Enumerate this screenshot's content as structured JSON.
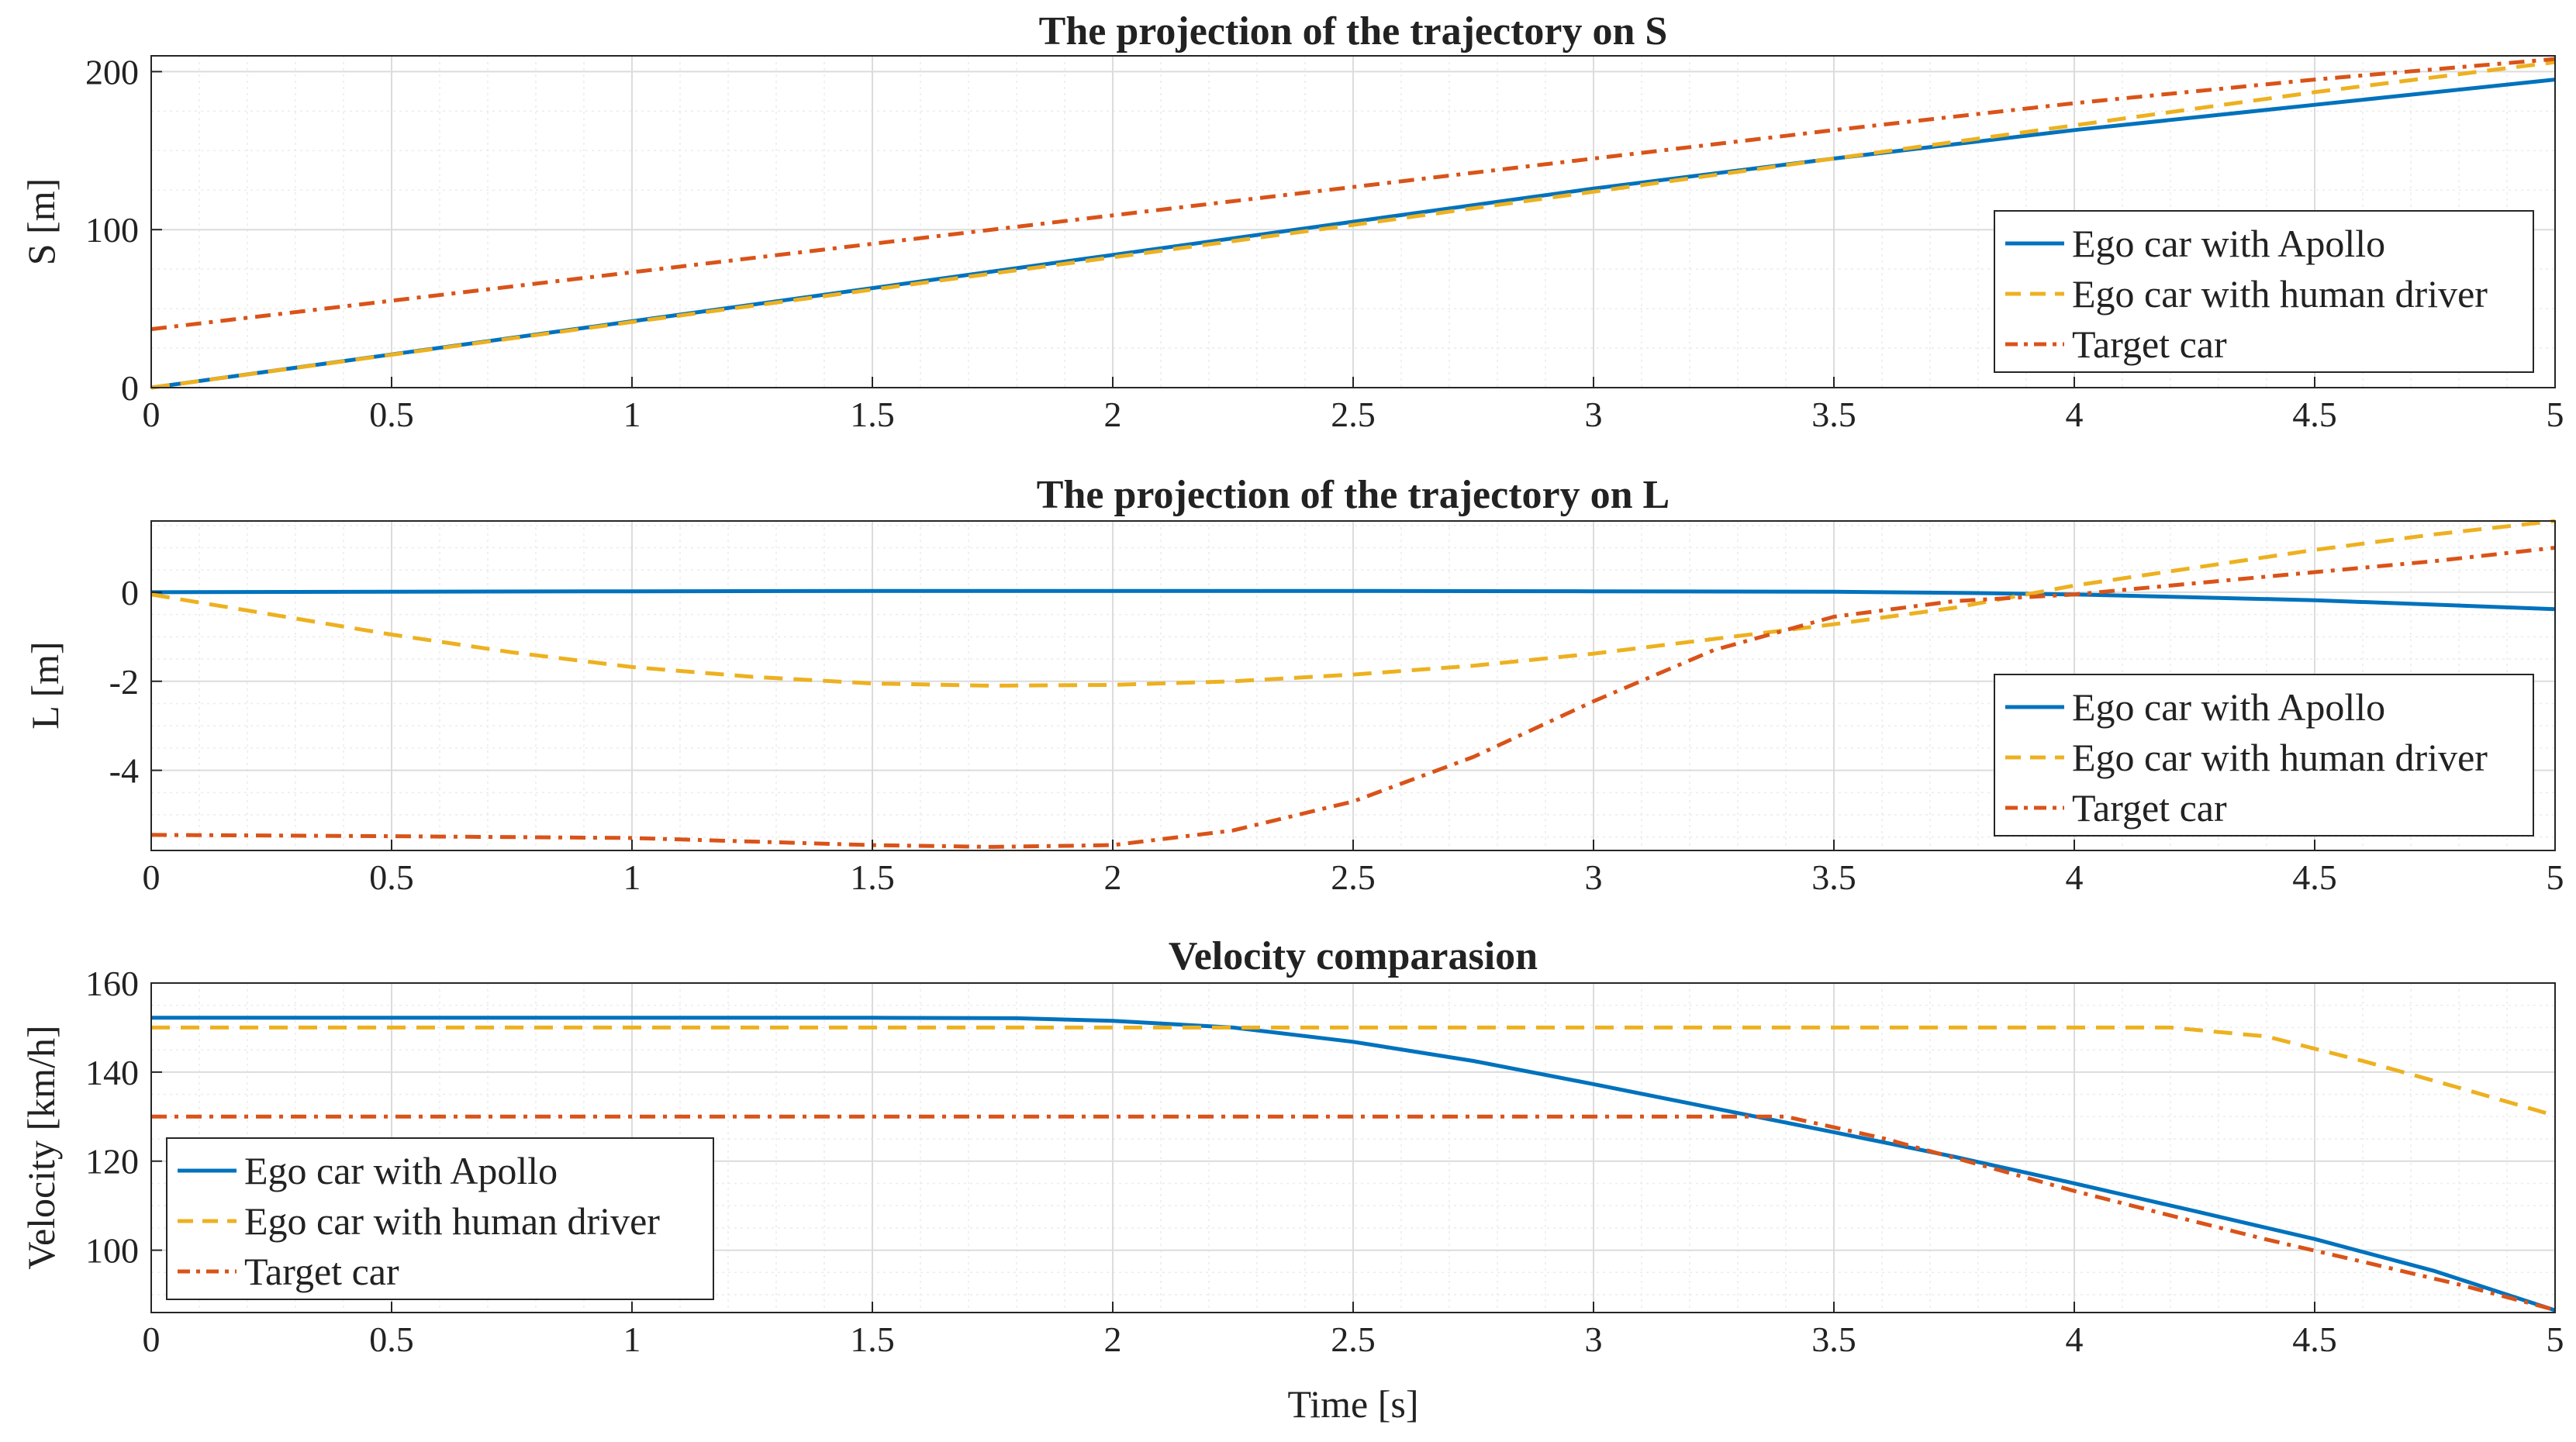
{
  "figure": {
    "shared_xlabel": "Time [s]",
    "colors": {
      "apollo": "#0072BD",
      "human": "#EDB120",
      "target": "#D95319"
    }
  },
  "chart_data": [
    {
      "type": "line",
      "title": "The projection of the trajectory on S",
      "xlabel": "",
      "ylabel": "S [m]",
      "xlim": [
        0,
        5
      ],
      "ylim": [
        0,
        210
      ],
      "xticks": [
        0,
        0.5,
        1,
        1.5,
        2,
        2.5,
        3,
        3.5,
        4,
        4.5,
        5
      ],
      "xtick_labels": [
        "0",
        "0.5",
        "1",
        "1.5",
        "2",
        "2.5",
        "3",
        "3.5",
        "4",
        "4.5",
        "5"
      ],
      "yticks": [
        0,
        100,
        200
      ],
      "ytick_labels": [
        "0",
        "100",
        "200"
      ],
      "grid": true,
      "legend_position": "bottom-right",
      "legend": [
        "Ego car with Apollo",
        "Ego car with human driver",
        "Target car"
      ],
      "series": [
        {
          "name": "Ego car with Apollo",
          "style": "solid",
          "color": "#0072BD",
          "x": [
            0,
            0.5,
            1,
            1.5,
            2,
            2.5,
            3,
            3.5,
            4,
            4.5,
            5
          ],
          "y": [
            0,
            21,
            42,
            63,
            84,
            105,
            126,
            145,
            163,
            179,
            195
          ]
        },
        {
          "name": "Ego car with human driver",
          "style": "dashed",
          "color": "#EDB120",
          "x": [
            0,
            0.5,
            1,
            1.5,
            2,
            2.5,
            3,
            3.5,
            4,
            4.5,
            5
          ],
          "y": [
            0,
            20.8,
            41.5,
            62,
            82.5,
            103,
            124,
            145,
            166,
            187,
            206
          ]
        },
        {
          "name": "Target car",
          "style": "dashdot",
          "color": "#D95319",
          "x": [
            0,
            0.5,
            1,
            1.5,
            2,
            2.5,
            3,
            3.5,
            4,
            4.5,
            5
          ],
          "y": [
            37,
            55,
            73,
            91,
            109,
            127,
            145,
            163,
            180,
            195,
            208
          ]
        }
      ]
    },
    {
      "type": "line",
      "title": "The projection of the trajectory on L",
      "xlabel": "",
      "ylabel": "L [m]",
      "xlim": [
        0,
        5
      ],
      "ylim": [
        -5.8,
        1.6
      ],
      "xticks": [
        0,
        0.5,
        1,
        1.5,
        2,
        2.5,
        3,
        3.5,
        4,
        4.5,
        5
      ],
      "xtick_labels": [
        "0",
        "0.5",
        "1",
        "1.5",
        "2",
        "2.5",
        "3",
        "3.5",
        "4",
        "4.5",
        "5"
      ],
      "yticks": [
        -4,
        -2,
        0
      ],
      "ytick_labels": [
        "-4",
        "-2",
        "0"
      ],
      "grid": true,
      "legend_position": "bottom-right",
      "legend": [
        "Ego car with Apollo",
        "Ego car with human driver",
        "Target car"
      ],
      "series": [
        {
          "name": "Ego car with Apollo",
          "style": "solid",
          "color": "#0072BD",
          "x": [
            0,
            0.5,
            1,
            1.5,
            2,
            2.5,
            3,
            3.5,
            3.8,
            4,
            4.5,
            5
          ],
          "y": [
            0.0,
            0.01,
            0.02,
            0.03,
            0.03,
            0.03,
            0.02,
            0.01,
            -0.02,
            -0.05,
            -0.18,
            -0.38
          ]
        },
        {
          "name": "Ego car with human driver",
          "style": "dashed",
          "color": "#EDB120",
          "x": [
            0,
            0.25,
            0.5,
            0.75,
            1,
            1.25,
            1.5,
            1.75,
            2,
            2.25,
            2.5,
            2.75,
            3,
            3.25,
            3.5,
            3.75,
            4,
            4.25,
            4.5,
            4.75,
            5
          ],
          "y": [
            -0.05,
            -0.5,
            -0.95,
            -1.35,
            -1.68,
            -1.9,
            -2.05,
            -2.1,
            -2.08,
            -2.0,
            -1.85,
            -1.65,
            -1.38,
            -1.05,
            -0.72,
            -0.35,
            0.15,
            0.55,
            0.95,
            1.3,
            1.6
          ]
        },
        {
          "name": "Target car",
          "style": "dashdot",
          "color": "#D95319",
          "x": [
            0,
            0.5,
            1,
            1.25,
            1.5,
            1.75,
            2,
            2.25,
            2.5,
            2.75,
            3,
            3.25,
            3.5,
            3.75,
            4,
            4.25,
            4.5,
            4.75,
            5
          ],
          "y": [
            -5.45,
            -5.48,
            -5.52,
            -5.6,
            -5.68,
            -5.72,
            -5.68,
            -5.35,
            -4.7,
            -3.7,
            -2.45,
            -1.3,
            -0.55,
            -0.2,
            -0.05,
            0.2,
            0.45,
            0.7,
            1.0
          ]
        }
      ]
    },
    {
      "type": "line",
      "title": "Velocity comparasion",
      "xlabel": "Time [s]",
      "ylabel": "Velocity [km/h]",
      "xlim": [
        0,
        5
      ],
      "ylim": [
        86,
        160
      ],
      "xticks": [
        0,
        0.5,
        1,
        1.5,
        2,
        2.5,
        3,
        3.5,
        4,
        4.5,
        5
      ],
      "xtick_labels": [
        "0",
        "0.5",
        "1",
        "1.5",
        "2",
        "2.5",
        "3",
        "3.5",
        "4",
        "4.5",
        "5"
      ],
      "yticks": [
        100,
        120,
        140,
        160
      ],
      "ytick_labels": [
        "100",
        "120",
        "140",
        "160"
      ],
      "grid": true,
      "legend_position": "bottom-left",
      "legend": [
        "Ego car with Apollo",
        "Ego car with human driver",
        "Target car"
      ],
      "series": [
        {
          "name": "Ego car with Apollo",
          "style": "solid",
          "color": "#0072BD",
          "x": [
            0,
            0.5,
            1,
            1.5,
            1.8,
            2,
            2.25,
            2.5,
            2.75,
            3,
            3.25,
            3.5,
            3.75,
            4,
            4.25,
            4.5,
            4.75,
            5
          ],
          "y": [
            152.2,
            152.2,
            152.2,
            152.2,
            152.1,
            151.5,
            150.0,
            146.8,
            142.5,
            137.3,
            131.9,
            126.5,
            121.0,
            115.0,
            108.8,
            102.5,
            95.3,
            86.5
          ]
        },
        {
          "name": "Ego car with human driver",
          "style": "dashed",
          "color": "#EDB120",
          "x": [
            0,
            0.5,
            1,
            1.5,
            2,
            2.5,
            3,
            3.5,
            4,
            4.2,
            4.4,
            4.6,
            4.8,
            5
          ],
          "y": [
            150,
            150,
            150,
            150,
            150,
            150,
            150,
            150,
            150,
            150,
            148.0,
            142.5,
            136.5,
            130.2
          ]
        },
        {
          "name": "Target car",
          "style": "dashdot",
          "color": "#D95319",
          "x": [
            0,
            0.5,
            1,
            1.5,
            2,
            2.5,
            3,
            3.2,
            3.4,
            3.6,
            3.8,
            4,
            4.2,
            4.4,
            4.6,
            4.8,
            5
          ],
          "y": [
            130,
            130,
            130,
            130,
            130,
            130,
            130,
            130,
            130,
            125.2,
            119.3,
            113.3,
            107.8,
            102.4,
            97.4,
            92.3,
            86.6
          ]
        }
      ]
    }
  ]
}
